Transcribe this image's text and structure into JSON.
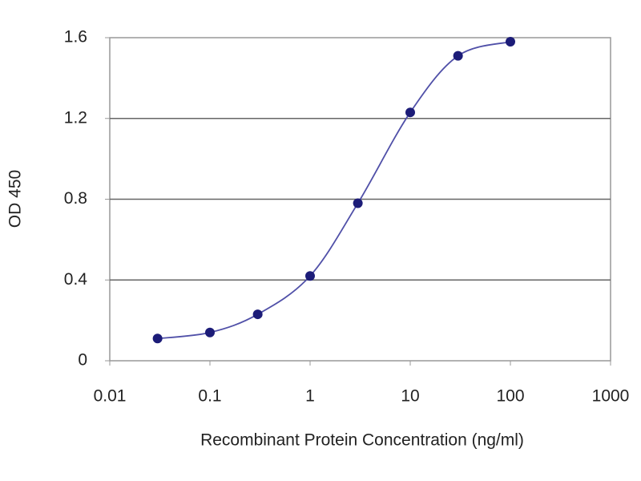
{
  "chart_data": {
    "type": "line",
    "xlabel": "Recombinant Protein Concentration (ng/ml)",
    "ylabel": "OD 450",
    "x": [
      0.03,
      0.1,
      0.3,
      1,
      3,
      10,
      30,
      100
    ],
    "series": [
      {
        "color": "#1c1c78",
        "values": [
          0.11,
          0.14,
          0.23,
          0.42,
          0.78,
          1.23,
          1.51,
          1.58
        ]
      }
    ],
    "xscale": "log",
    "xlim": [
      0.01,
      1000
    ],
    "xticks": [
      0.01,
      0.1,
      1,
      10,
      100,
      1000
    ],
    "ylim": [
      0,
      1.6
    ],
    "yticks": [
      0,
      0.4,
      0.8,
      1.2,
      1.6
    ],
    "grid": true
  }
}
